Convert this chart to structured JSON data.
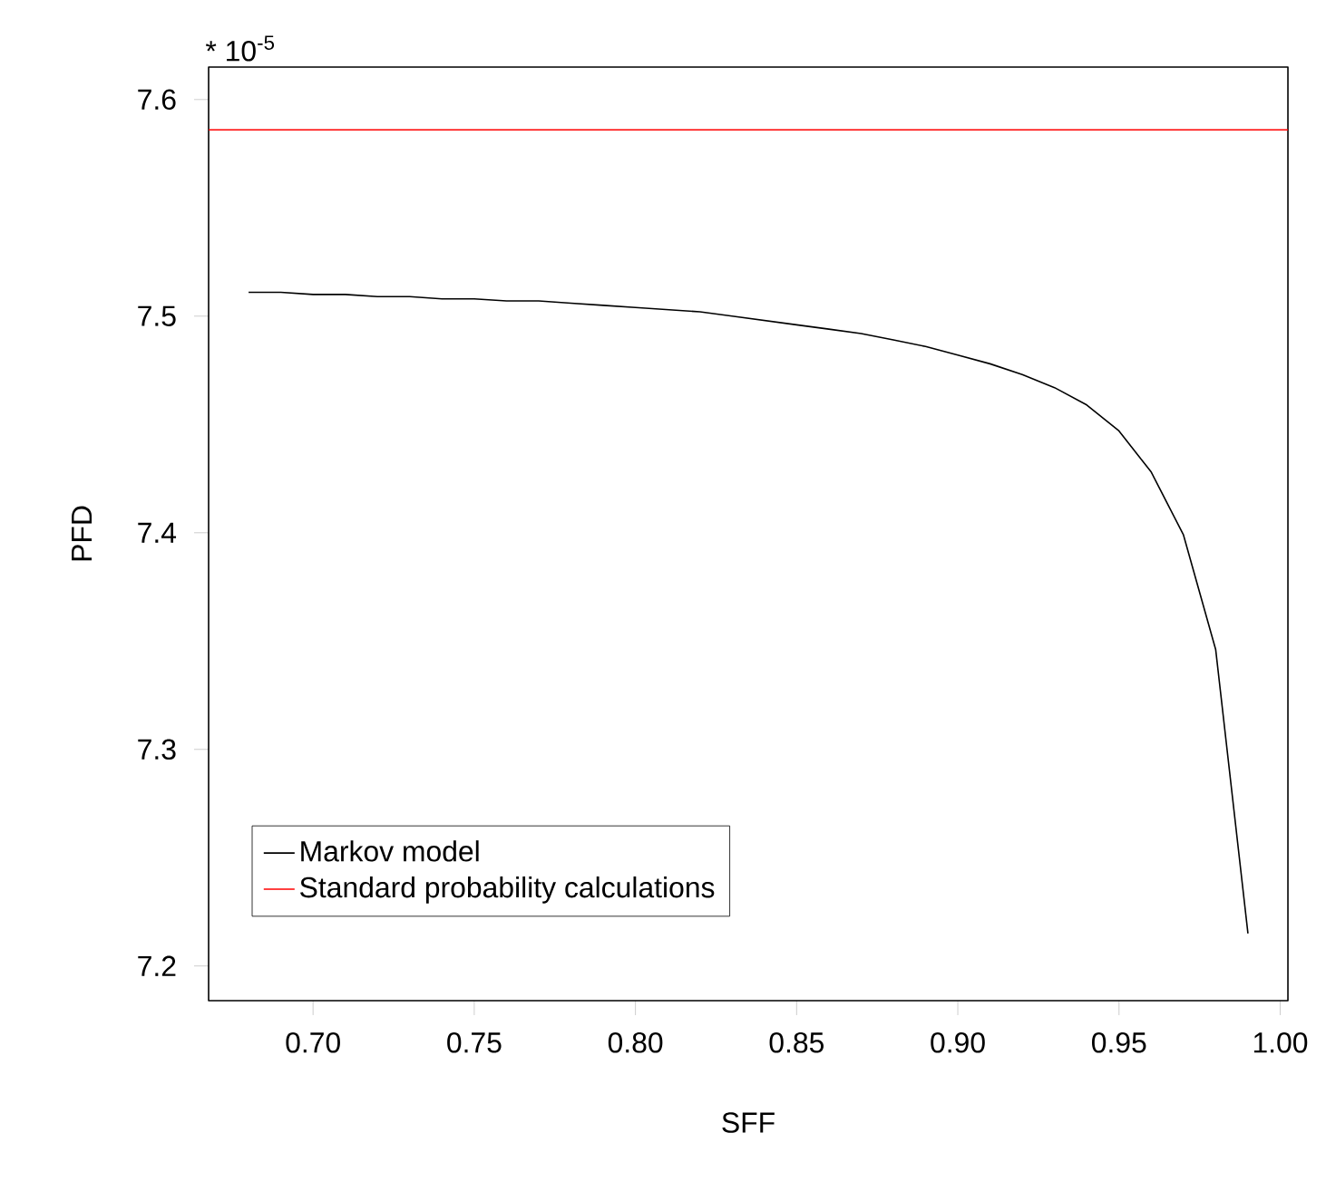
{
  "chart_data": {
    "type": "line",
    "xlabel": "SFF",
    "ylabel": "PFD",
    "annotations": [
      "* 10$^{-5}$"
    ],
    "x": [
      0.68,
      0.69,
      0.7,
      0.71,
      0.72,
      0.73,
      0.74,
      0.75,
      0.76,
      0.77,
      0.78,
      0.79,
      0.8,
      0.81,
      0.82,
      0.83,
      0.84,
      0.85,
      0.86,
      0.87,
      0.88,
      0.89,
      0.9,
      0.91,
      0.92,
      0.93,
      0.94,
      0.95,
      0.96,
      0.97,
      0.98,
      0.99
    ],
    "series": [
      {
        "name": "Markov model",
        "color": "#000000",
        "values": [
          7.511,
          7.511,
          7.51,
          7.51,
          7.509,
          7.509,
          7.508,
          7.508,
          7.507,
          7.507,
          7.506,
          7.505,
          7.504,
          7.503,
          7.502,
          7.5,
          7.498,
          7.496,
          7.494,
          7.492,
          7.489,
          7.486,
          7.482,
          7.478,
          7.473,
          7.467,
          7.459,
          7.447,
          7.428,
          7.399,
          7.346,
          7.215
        ]
      },
      {
        "name": "Standard probability calculations",
        "color": "#ff0000",
        "x": [
          0.6676,
          1.0024
        ],
        "values": [
          7.586,
          7.586
        ]
      }
    ],
    "xlim": [
      0.6676,
      1.0024
    ],
    "ylim": [
      7.184,
      7.615
    ],
    "xticks": [
      {
        "value": 0.7,
        "label": "0.70"
      },
      {
        "value": 0.75,
        "label": "0.75"
      },
      {
        "value": 0.8,
        "label": "0.80"
      },
      {
        "value": 0.85,
        "label": "0.85"
      },
      {
        "value": 0.9,
        "label": "0.90"
      },
      {
        "value": 0.95,
        "label": "0.95"
      },
      {
        "value": 1.0,
        "label": "1.00"
      }
    ],
    "yticks": [
      7.2,
      7.3,
      7.4,
      7.5,
      7.6
    ],
    "legend": "bottom left",
    "grid": false,
    "marker": "none",
    "line_style": "solid"
  }
}
